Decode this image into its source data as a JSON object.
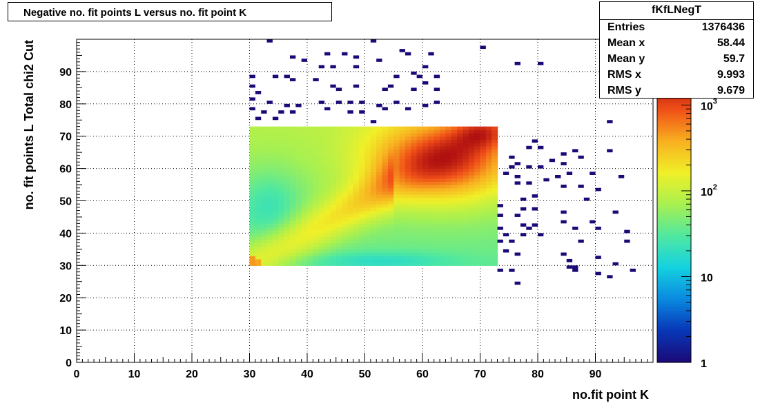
{
  "window": {
    "title": "Negative no. fit points L versus no. fit point K"
  },
  "stats": {
    "name": "fKfLNegT",
    "rows": [
      {
        "label": "Entries",
        "value": "1376436"
      },
      {
        "label": "Mean x",
        "value": "58.44"
      },
      {
        "label": "Mean y",
        "value": "59.7"
      },
      {
        "label": "RMS x",
        "value": "9.993"
      },
      {
        "label": "RMS y",
        "value": "9.679"
      }
    ]
  },
  "chart_data": {
    "type": "heatmap",
    "title": "Negative no. fit points L versus no. fit point K",
    "xlabel": "no.fit point K",
    "ylabel": "no. fit points  L   Total chi2 Cut",
    "xlim": [
      0,
      100
    ],
    "ylim": [
      0,
      100
    ],
    "x_ticks": [
      "0",
      "10",
      "20",
      "30",
      "40",
      "50",
      "60",
      "70",
      "80",
      "90"
    ],
    "y_ticks": [
      "0",
      "10",
      "20",
      "30",
      "40",
      "50",
      "60",
      "70",
      "80",
      "90"
    ],
    "z_scale": "log",
    "zlim": [
      1,
      2000
    ],
    "z_ticks": [
      {
        "base": "1",
        "exp": ""
      },
      {
        "base": "10",
        "exp": ""
      },
      {
        "base": "10",
        "exp": "2"
      },
      {
        "base": "10",
        "exp": "3"
      }
    ],
    "grid": true,
    "colors": {
      "palette": [
        "#1a0a78",
        "#0838b8",
        "#0a8ae0",
        "#14d2e0",
        "#50e8a0",
        "#a8f050",
        "#f0f028",
        "#f8b020",
        "#f05018",
        "#b01010"
      ]
    },
    "dense_region": {
      "x_range": [
        30,
        73
      ],
      "y_range": [
        30,
        73
      ],
      "description_values": "log10 counts; peak near x=70,y=72 and x=62,y=62"
    },
    "sparse_points": [
      [
        33,
        99
      ],
      [
        51,
        99
      ],
      [
        56,
        96
      ],
      [
        70,
        97
      ],
      [
        37,
        94
      ],
      [
        43,
        95
      ],
      [
        46,
        95
      ],
      [
        48,
        94
      ],
      [
        57,
        95
      ],
      [
        61,
        95
      ],
      [
        39,
        93
      ],
      [
        52,
        93
      ],
      [
        76,
        92
      ],
      [
        80,
        92
      ],
      [
        42,
        91
      ],
      [
        44,
        91
      ],
      [
        48,
        91
      ],
      [
        60,
        91
      ],
      [
        30,
        88
      ],
      [
        34,
        88
      ],
      [
        36,
        88
      ],
      [
        55,
        88
      ],
      [
        58,
        89
      ],
      [
        59,
        88
      ],
      [
        62,
        88
      ],
      [
        37,
        87
      ],
      [
        41,
        87
      ],
      [
        60,
        86
      ],
      [
        30,
        85
      ],
      [
        44,
        85
      ],
      [
        45,
        84
      ],
      [
        48,
        85
      ],
      [
        54,
        85
      ],
      [
        31,
        83
      ],
      [
        53,
        84
      ],
      [
        58,
        84
      ],
      [
        62,
        84
      ],
      [
        30,
        81
      ],
      [
        33,
        80
      ],
      [
        42,
        80
      ],
      [
        45,
        80
      ],
      [
        47,
        80
      ],
      [
        49,
        80
      ],
      [
        55,
        80
      ],
      [
        62,
        80
      ],
      [
        36,
        79
      ],
      [
        38,
        79
      ],
      [
        52,
        79
      ],
      [
        60,
        79
      ],
      [
        30,
        78
      ],
      [
        32,
        77
      ],
      [
        35,
        77
      ],
      [
        37,
        77
      ],
      [
        43,
        78
      ],
      [
        47,
        77
      ],
      [
        49,
        77
      ],
      [
        53,
        78
      ],
      [
        57,
        78
      ],
      [
        31,
        75
      ],
      [
        34,
        75
      ],
      [
        51,
        74
      ],
      [
        92,
        74
      ],
      [
        79,
        68
      ],
      [
        78,
        66
      ],
      [
        80,
        66
      ],
      [
        92,
        65
      ],
      [
        84,
        64
      ],
      [
        86,
        65
      ],
      [
        75,
        63
      ],
      [
        87,
        63
      ],
      [
        82,
        62
      ],
      [
        76,
        61
      ],
      [
        80,
        60
      ],
      [
        84,
        61
      ],
      [
        75,
        60
      ],
      [
        78,
        60
      ],
      [
        85,
        58
      ],
      [
        89,
        58
      ],
      [
        74,
        58
      ],
      [
        76,
        57
      ],
      [
        83,
        57
      ],
      [
        94,
        57
      ],
      [
        81,
        56
      ],
      [
        76,
        55
      ],
      [
        78,
        55
      ],
      [
        84,
        54
      ],
      [
        87,
        54
      ],
      [
        90,
        53
      ],
      [
        79,
        51
      ],
      [
        77,
        50
      ],
      [
        88,
        50
      ],
      [
        73,
        48
      ],
      [
        77,
        47
      ],
      [
        79,
        47
      ],
      [
        84,
        46
      ],
      [
        93,
        46
      ],
      [
        73,
        45
      ],
      [
        76,
        45
      ],
      [
        84,
        43
      ],
      [
        89,
        43
      ],
      [
        77,
        42
      ],
      [
        79,
        42
      ],
      [
        73,
        41
      ],
      [
        78,
        41
      ],
      [
        86,
        41
      ],
      [
        90,
        41
      ],
      [
        95,
        40
      ],
      [
        74,
        39
      ],
      [
        77,
        39
      ],
      [
        80,
        39
      ],
      [
        73,
        37
      ],
      [
        75,
        37
      ],
      [
        87,
        37
      ],
      [
        95,
        37
      ],
      [
        74,
        34
      ],
      [
        76,
        33
      ],
      [
        84,
        33
      ],
      [
        90,
        32
      ],
      [
        85,
        31
      ],
      [
        93,
        30
      ],
      [
        86,
        29
      ],
      [
        96,
        28
      ],
      [
        73,
        28
      ],
      [
        75,
        28
      ],
      [
        85,
        29
      ],
      [
        90,
        27
      ],
      [
        86,
        28
      ],
      [
        92,
        26
      ],
      [
        76,
        24
      ]
    ]
  }
}
